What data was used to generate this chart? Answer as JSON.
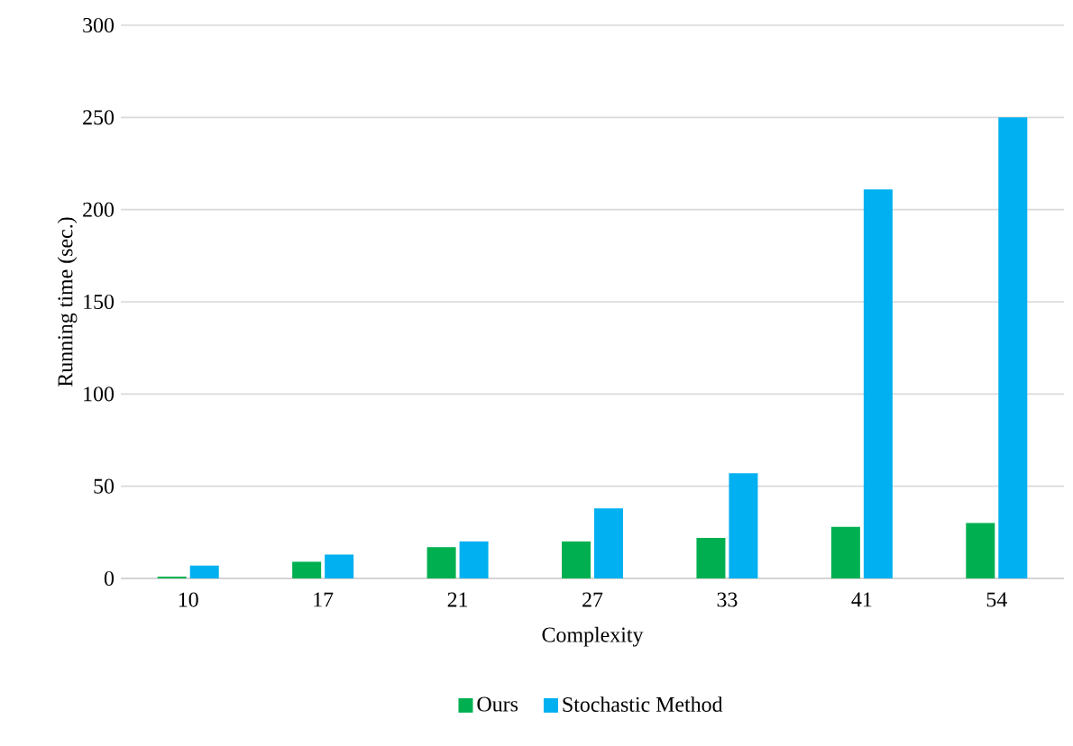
{
  "chart_data": {
    "type": "bar",
    "xlabel": "Complexity",
    "ylabel": "Running time (sec.)",
    "categories": [
      "10",
      "17",
      "21",
      "27",
      "33",
      "41",
      "54"
    ],
    "series": [
      {
        "name": "Ours",
        "color": "#00b050",
        "values": [
          1,
          9,
          17,
          20,
          22,
          28,
          30
        ]
      },
      {
        "name": "Stochastic Method",
        "color": "#00b0f0",
        "values": [
          7,
          13,
          20,
          38,
          57,
          211,
          250
        ]
      }
    ],
    "ylim": [
      0,
      300
    ],
    "yticks": [
      0,
      50,
      100,
      150,
      200,
      250,
      300
    ],
    "grid": "y",
    "legend": "bottom"
  }
}
